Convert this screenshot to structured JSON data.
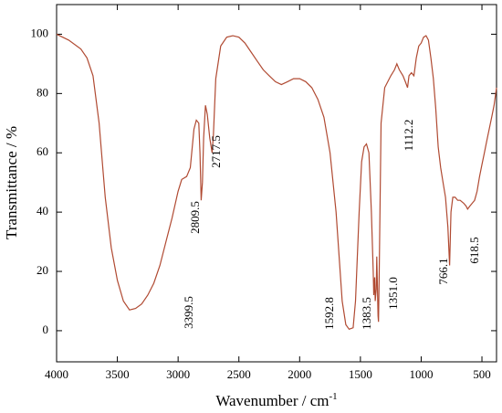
{
  "chart_data": {
    "type": "line",
    "xlabel": "Wavenumber / cm",
    "xlabel_sup": "-1",
    "ylabel": "Transmittance / %",
    "color": "#b04a32",
    "xlim": [
      4000,
      380
    ],
    "xticks": [
      4000,
      3500,
      3000,
      2500,
      2000,
      1500,
      1000,
      500
    ],
    "ylim": [
      -10.5,
      110
    ],
    "yticks": [
      0,
      20,
      40,
      60,
      80,
      100
    ],
    "x": [
      4000,
      3900,
      3800,
      3750,
      3700,
      3650,
      3620,
      3600,
      3550,
      3500,
      3450,
      3400,
      3350,
      3300,
      3250,
      3200,
      3150,
      3100,
      3050,
      3000,
      2970,
      2930,
      2900,
      2870,
      2850,
      2830,
      2820,
      2810,
      2800,
      2790,
      2775,
      2760,
      2740,
      2720,
      2710,
      2690,
      2650,
      2600,
      2550,
      2500,
      2450,
      2400,
      2350,
      2300,
      2250,
      2200,
      2150,
      2100,
      2050,
      2000,
      1950,
      1900,
      1850,
      1800,
      1750,
      1700,
      1650,
      1620,
      1593,
      1560,
      1540,
      1510,
      1490,
      1470,
      1450,
      1430,
      1410,
      1395,
      1390,
      1383,
      1378,
      1370,
      1365,
      1355,
      1351,
      1345,
      1330,
      1300,
      1250,
      1220,
      1200,
      1180,
      1150,
      1130,
      1112,
      1100,
      1080,
      1060,
      1040,
      1020,
      1000,
      980,
      960,
      940,
      920,
      900,
      880,
      860,
      840,
      820,
      800,
      780,
      766,
      755,
      740,
      720,
      700,
      680,
      650,
      630,
      618,
      600,
      580,
      560,
      540,
      520,
      500,
      480,
      460,
      440,
      420,
      400,
      380
    ],
    "values": [
      100,
      98,
      95,
      92,
      86,
      70,
      55,
      45,
      28,
      17,
      10,
      7,
      7.5,
      9,
      12,
      16,
      22,
      30,
      38,
      47,
      51,
      52,
      55,
      68,
      71,
      70,
      60,
      44,
      50,
      65,
      76,
      73,
      65,
      60,
      66,
      85,
      96,
      99,
      99.5,
      99,
      97,
      94,
      91,
      88,
      86,
      84,
      83,
      84,
      85,
      85,
      84,
      82,
      78,
      72,
      60,
      40,
      10,
      2,
      0.5,
      1,
      10,
      40,
      57,
      62,
      63,
      60,
      40,
      20,
      12,
      18,
      10,
      14,
      25,
      5,
      3,
      20,
      70,
      82,
      86,
      88,
      90,
      88,
      86,
      84,
      82,
      86,
      87,
      86,
      92,
      96,
      97,
      99,
      99.5,
      98,
      92,
      85,
      75,
      62,
      55,
      50,
      45,
      35,
      22,
      40,
      45,
      45,
      44,
      44,
      43,
      42,
      41,
      42,
      43,
      44,
      47,
      52,
      56,
      60,
      64,
      68,
      72,
      76,
      82
    ],
    "annotations": [
      "3399.5",
      "2809.5",
      "2717.5",
      "1592.8",
      "1383.5",
      "1351.0",
      "1112.2",
      "766.1",
      "618.5"
    ]
  }
}
